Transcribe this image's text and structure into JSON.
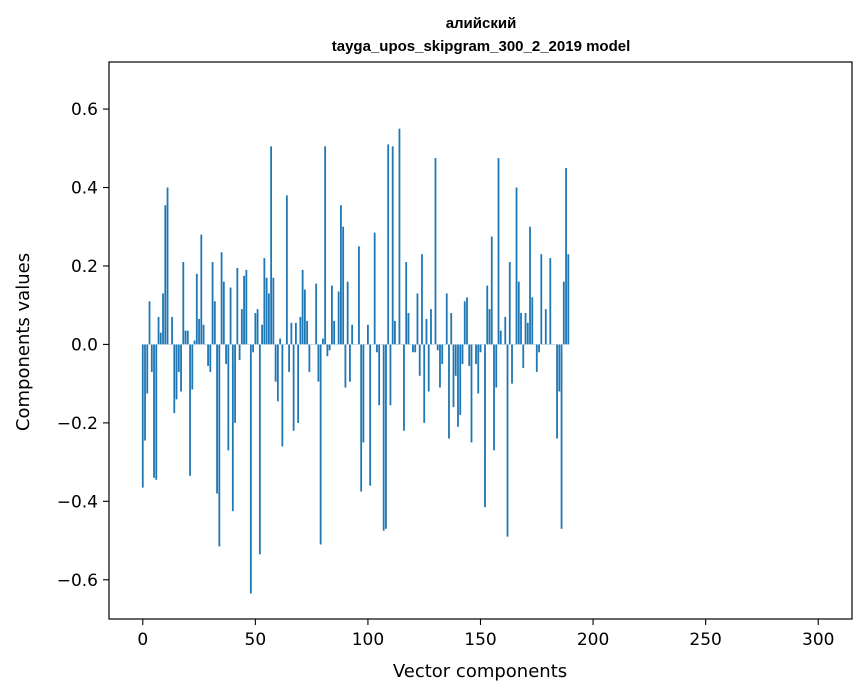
{
  "chart_data": {
    "type": "bar",
    "title_line1": "алийский",
    "title_line2": "tayga_upos_skipgram_300_2_2019 model",
    "xlabel": "Vector components",
    "ylabel": "Components values",
    "xlim": [
      -15,
      315
    ],
    "ylim": [
      -0.7,
      0.72
    ],
    "xticks": [
      0,
      50,
      100,
      150,
      200,
      250,
      300
    ],
    "xtick_labels": [
      "0",
      "50",
      "100",
      "150",
      "200",
      "250",
      "300"
    ],
    "yticks": [
      -0.6,
      -0.4,
      -0.2,
      0.0,
      0.2,
      0.4,
      0.6
    ],
    "ytick_labels": [
      "−0.6",
      "−0.4",
      "−0.2",
      "0.0",
      "0.2",
      "0.4",
      "0.6"
    ],
    "bar_color": "#1f77b4",
    "x_start": 0,
    "values": [
      -0.365,
      -0.245,
      -0.125,
      0.11,
      -0.07,
      -0.34,
      -0.345,
      0.07,
      0.03,
      0.13,
      0.355,
      0.4,
      0.0,
      0.07,
      -0.175,
      -0.14,
      -0.07,
      -0.12,
      0.21,
      0.035,
      0.035,
      -0.335,
      -0.115,
      0.01,
      0.18,
      0.065,
      0.28,
      0.05,
      0.0,
      -0.055,
      -0.07,
      0.21,
      0.11,
      -0.38,
      -0.515,
      0.235,
      0.16,
      -0.05,
      -0.27,
      0.145,
      -0.425,
      -0.2,
      0.195,
      -0.04,
      0.09,
      0.175,
      0.19,
      0.0,
      -0.635,
      -0.02,
      0.08,
      0.09,
      -0.535,
      0.05,
      0.22,
      0.17,
      0.13,
      0.505,
      0.17,
      -0.095,
      -0.145,
      0.015,
      -0.26,
      0.0,
      0.38,
      -0.07,
      0.055,
      -0.22,
      0.055,
      -0.2,
      0.07,
      0.19,
      0.14,
      0.06,
      -0.07,
      0.0,
      0.0,
      0.155,
      -0.095,
      -0.51,
      0.015,
      0.505,
      -0.03,
      -0.015,
      0.15,
      0.06,
      0.0,
      0.135,
      0.355,
      0.3,
      -0.11,
      0.16,
      -0.095,
      0.05,
      0.0,
      0.0,
      0.25,
      -0.375,
      -0.25,
      0.0,
      0.05,
      -0.36,
      0.0,
      0.285,
      -0.02,
      -0.155,
      0.0,
      -0.475,
      -0.47,
      0.51,
      -0.155,
      0.505,
      0.06,
      0.0,
      0.55,
      0.0,
      -0.22,
      0.21,
      0.08,
      0.0,
      -0.02,
      -0.02,
      0.13,
      -0.08,
      0.23,
      -0.2,
      0.065,
      -0.12,
      0.09,
      0.0,
      0.475,
      -0.015,
      -0.11,
      -0.05,
      0.0,
      0.13,
      -0.24,
      0.08,
      -0.16,
      -0.08,
      -0.21,
      -0.18,
      -0.05,
      0.11,
      0.12,
      -0.055,
      -0.25,
      0.0,
      -0.05,
      -0.125,
      -0.02,
      0.0,
      -0.415,
      0.15,
      0.09,
      0.275,
      -0.27,
      -0.11,
      0.475,
      0.035,
      0.0,
      0.07,
      -0.49,
      0.21,
      -0.1,
      0.0,
      0.4,
      0.16,
      0.08,
      -0.06,
      0.08,
      0.055,
      0.3,
      0.12,
      0.0,
      -0.07,
      -0.02,
      0.23,
      0.0,
      0.09,
      0.0,
      0.22,
      0.0,
      0.0,
      -0.24,
      -0.12,
      -0.47,
      0.16,
      0.45,
      0.23
    ]
  }
}
